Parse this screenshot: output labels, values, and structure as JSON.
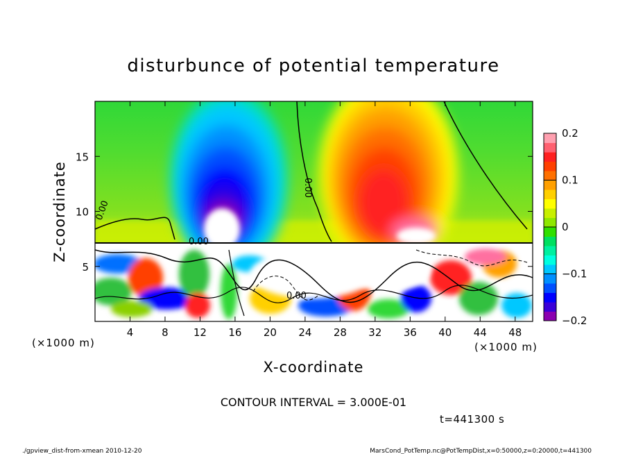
{
  "chart_data": {
    "type": "heatmap",
    "title": "disturbunce of potential temperature",
    "xlabel": "X-coordinate",
    "ylabel": "Z-coordinate",
    "x_unit_left": "(×1000 m)",
    "x_unit_right": "(×1000 m)",
    "xlim": [
      0,
      50
    ],
    "ylim": [
      0,
      20
    ],
    "x_ticks": [
      4,
      8,
      12,
      16,
      20,
      24,
      28,
      32,
      36,
      40,
      44,
      48
    ],
    "y_ticks": [
      5,
      10,
      15
    ],
    "colorbar": {
      "range": [
        -0.2,
        0.2
      ],
      "ticks": [
        0.2,
        0.1,
        0,
        -0.1,
        -0.2
      ],
      "tick_labels": [
        "0.2",
        "0.1",
        "0",
        "−0.1",
        "−0.2"
      ],
      "colors": [
        "#8b00b0",
        "#3a00d8",
        "#0000ff",
        "#0050ff",
        "#0090ff",
        "#00c8ff",
        "#00ffe0",
        "#00f0a0",
        "#00e060",
        "#30e000",
        "#8fe800",
        "#c8f000",
        "#ffff00",
        "#ffd000",
        "#ffa000",
        "#ff7000",
        "#ff4000",
        "#ff2020",
        "#ff6070",
        "#ffa0b0"
      ]
    },
    "contour_labels": [
      "0.00",
      "0.00",
      "0.00",
      "0.00"
    ],
    "contour_interval_text": "CONTOUR INTERVAL = 3.000E-01",
    "time_text": "t=441300 s",
    "footer_left": "./gpview_dist-from-xmean  2010-12-20",
    "footer_right": "MarsCond_PotTemp.nc@PotTempDist,x=0:50000,z=0:20000,t=441300"
  }
}
